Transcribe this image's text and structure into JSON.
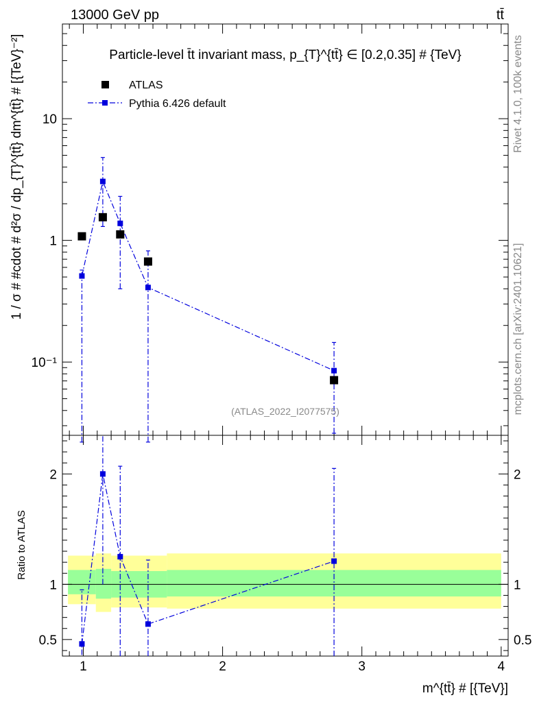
{
  "header": {
    "energy_label": "13000 GeV pp",
    "process_label": "tt̄"
  },
  "side_labels": {
    "rivet": "Rivet 4.1.0,  100k events",
    "mcplots": "mcplots.cern.ch [arXiv:2401.10621]"
  },
  "watermark": "(ATLAS_2022_I2077575)",
  "chart_data": [
    {
      "type": "scatter",
      "title": "Particle-level t̄t invariant mass, p_{T}^{tt̄} ∈ [0.2,0.35] # {TeV}",
      "ylabel": "1 / σ # #cdot # d²σ / dp_{T}^{tt̄} dm^{tt̄} # [{TeV}⁻²]",
      "xlabel": "m^{tt̄} # [{TeV}]",
      "yscale": "log",
      "xlim": [
        0.85,
        4.05
      ],
      "ylim": [
        0.025,
        60
      ],
      "y_ticks": [
        {
          "value": 0.1,
          "label": "10⁻¹"
        },
        {
          "value": 1,
          "label": "1"
        },
        {
          "value": 10,
          "label": "10"
        }
      ],
      "legend": [
        "ATLAS",
        "Pythia 6.426 default"
      ],
      "legend_position": "top-left",
      "series": [
        {
          "name": "ATLAS",
          "color": "#000000",
          "x": [
            0.99,
            1.14,
            1.265,
            1.465,
            2.8
          ],
          "y": [
            1.08,
            1.55,
            1.12,
            0.67,
            0.071
          ]
        },
        {
          "name": "Pythia 6.426 default",
          "color": "#0000dd",
          "x": [
            0.99,
            1.14,
            1.265,
            1.465,
            2.8
          ],
          "y": [
            0.51,
            3.05,
            1.38,
            0.41,
            0.085
          ],
          "y_err_up": [
            0.57,
            4.8,
            2.3,
            0.82,
            0.145
          ],
          "y_err_down": [
            0.022,
            1.3,
            0.4,
            0.022,
            0.026
          ]
        }
      ]
    },
    {
      "type": "line",
      "ylabel": "Ratio to ATLAS",
      "xlabel": "m^{tt̄} # [{TeV}]",
      "xlim": [
        0.85,
        4.05
      ],
      "ylim": [
        0.35,
        2.35
      ],
      "x_ticks": [
        1,
        2,
        3,
        4
      ],
      "y_ticks": [
        {
          "value": 0.5,
          "label": "0.5"
        },
        {
          "value": 1,
          "label": "1"
        },
        {
          "value": 2,
          "label": "2"
        }
      ],
      "reference_line": 1,
      "bands": [
        {
          "x_from": 0.89,
          "x_to": 1.09,
          "yellow": [
            0.82,
            1.26
          ],
          "green": [
            0.91,
            1.13
          ]
        },
        {
          "x_from": 1.09,
          "x_to": 1.2,
          "yellow": [
            0.75,
            1.28
          ],
          "green": [
            0.87,
            1.14
          ]
        },
        {
          "x_from": 1.2,
          "x_to": 1.6,
          "yellow": [
            0.79,
            1.26
          ],
          "green": [
            0.88,
            1.12
          ]
        },
        {
          "x_from": 1.6,
          "x_to": 4.0,
          "yellow": [
            0.78,
            1.28
          ],
          "green": [
            0.89,
            1.13
          ]
        }
      ],
      "series": [
        {
          "name": "Pythia 6.426 default",
          "color": "#0000dd",
          "x": [
            0.99,
            1.14,
            1.265,
            1.465,
            2.8
          ],
          "y": [
            0.46,
            2.0,
            1.25,
            0.64,
            1.21
          ],
          "y_err_up": [
            0.95,
            2.5,
            2.07,
            1.22,
            2.05
          ],
          "y_err_down": [
            0.36,
            1.0,
            0.35,
            0.35,
            0.35
          ]
        }
      ]
    }
  ],
  "colors": {
    "band_yellow": "#ffff99",
    "band_green": "#99ff99",
    "mc_blue": "#0000dd"
  }
}
